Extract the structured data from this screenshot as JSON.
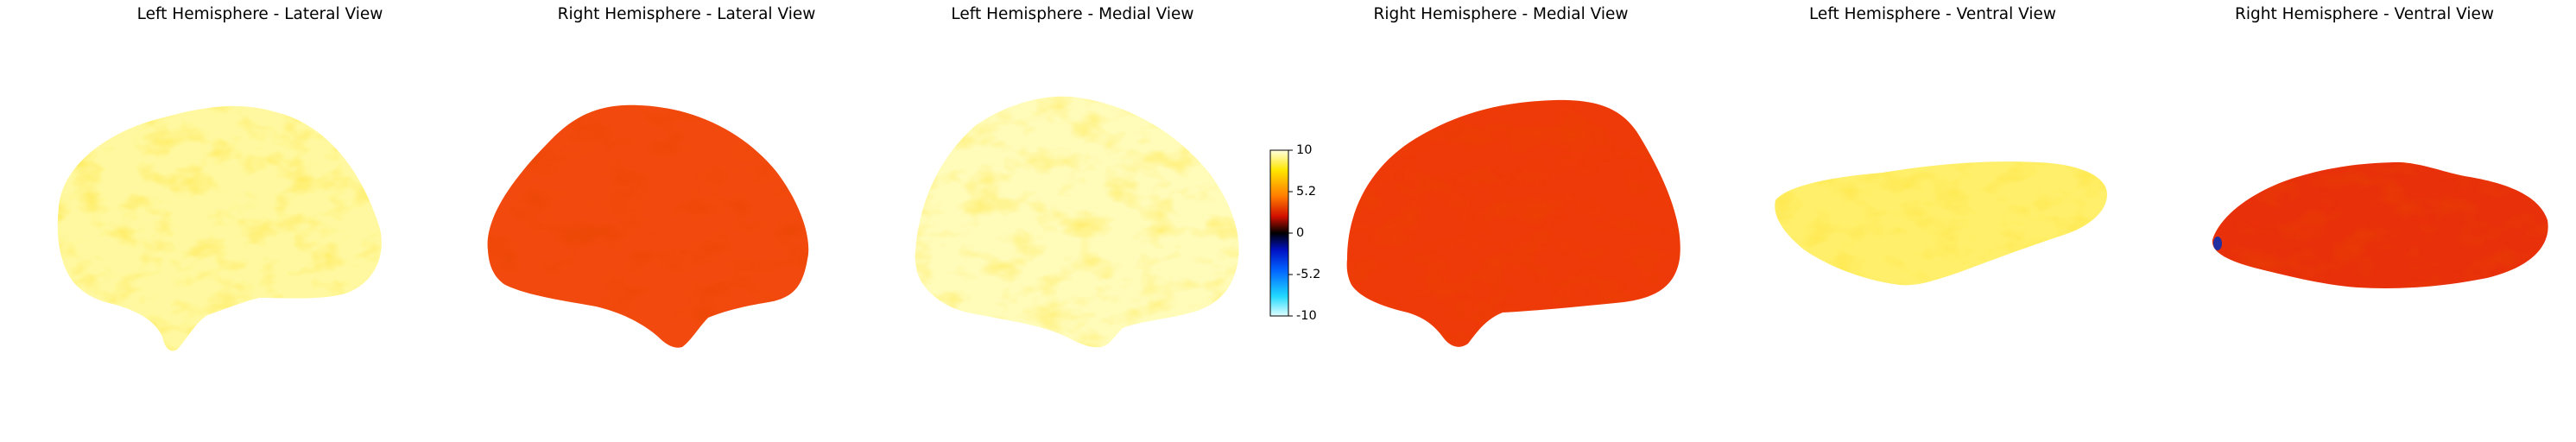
{
  "panels": [
    {
      "title": "Left Hemisphere - Lateral View"
    },
    {
      "title": "Right Hemisphere - Lateral View"
    },
    {
      "title": "Left Hemisphere - Medial View"
    },
    {
      "title": "Right Hemisphere - Medial View"
    },
    {
      "title": "Left Hemisphere - Ventral View"
    },
    {
      "title": "Right Hemisphere - Ventral View"
    }
  ],
  "colorbar": {
    "ticks": [
      "10",
      "5.2",
      "0",
      "-5.2",
      "-10"
    ],
    "range": [
      -10,
      10
    ],
    "colormap": "cold-hot"
  },
  "colors": {
    "pale_yellow": "#fff8a0",
    "bright_yellow": "#ffef2a",
    "orange_red": "#f5410a",
    "red": "#e02a00",
    "dark_red": "#b81000",
    "blue": "#0030ff",
    "cyan": "#30e6ff"
  }
}
